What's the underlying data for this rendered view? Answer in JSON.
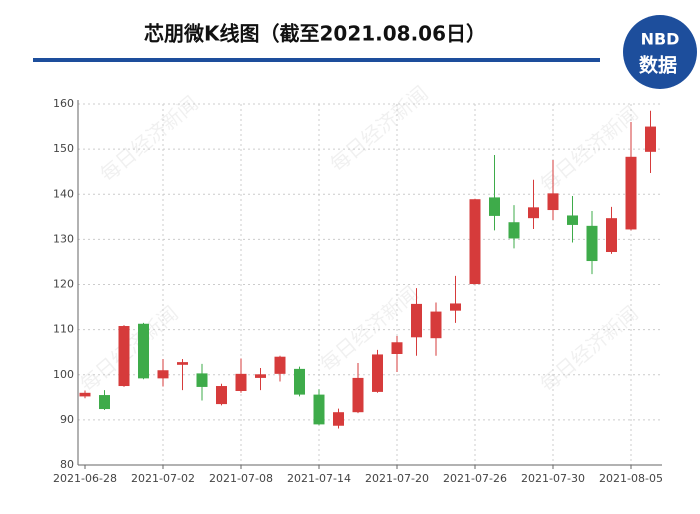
{
  "chart_data": {
    "type": "candlestick",
    "title": "芯朋微K线图（截至2021.08.06日）",
    "logo": {
      "top": "NBD",
      "bottom": "数据"
    },
    "watermark": "每日经济新闻",
    "categories": [
      "2021-06-28",
      null,
      null,
      null,
      "2021-07-02",
      null,
      null,
      null,
      "2021-07-08",
      null,
      null,
      null,
      "2021-07-14",
      null,
      null,
      null,
      "2021-07-20",
      null,
      null,
      null,
      "2021-07-26",
      null,
      null,
      null,
      "2021-07-30",
      null,
      null,
      null,
      "2021-08-05",
      null
    ],
    "open": [
      95.2,
      95.5,
      97.5,
      111.3,
      99.2,
      102.2,
      100.3,
      93.5,
      96.4,
      99.3,
      100.2,
      101.3,
      95.6,
      88.7,
      91.7,
      96.2,
      104.6,
      108.3,
      108.1,
      114.2,
      120.1,
      139.3,
      133.8,
      134.7,
      136.5,
      135.3,
      133,
      127.2,
      132.2,
      149.4
    ],
    "high": [
      96.5,
      96.6,
      111,
      111.5,
      103.5,
      103.5,
      102.4,
      98,
      103.6,
      101.5,
      104.2,
      101.8,
      96.8,
      92.5,
      102.6,
      105.5,
      108.6,
      119.2,
      116,
      121.9,
      139,
      148.7,
      137.6,
      143.2,
      147.6,
      139.6,
      136.3,
      137.2,
      156,
      158.5
    ],
    "low": [
      94.8,
      92.2,
      97.3,
      99,
      97.4,
      96.6,
      94.3,
      93.2,
      96,
      96.6,
      98.5,
      95.2,
      88.8,
      88.1,
      91.5,
      96,
      100.6,
      104.2,
      104.2,
      111.5,
      120,
      132,
      128,
      132.3,
      134.3,
      129.3,
      122.3,
      126.8,
      132,
      144.7
    ],
    "close": [
      96,
      92.4,
      110.8,
      99.2,
      101,
      102.8,
      97.3,
      97.5,
      100.2,
      100.1,
      104,
      95.6,
      89,
      91.7,
      99.3,
      104.5,
      107.2,
      115.7,
      114,
      115.8,
      138.9,
      135.2,
      130.2,
      137.1,
      140.2,
      133.2,
      125.2,
      134.7,
      148.3,
      155
    ],
    "up_color": "#d63b3b",
    "down_color": "#3eab4a",
    "ylim": [
      80,
      160
    ],
    "yticks": [
      80,
      90,
      100,
      110,
      120,
      130,
      140,
      150,
      160
    ],
    "grid": true
  }
}
